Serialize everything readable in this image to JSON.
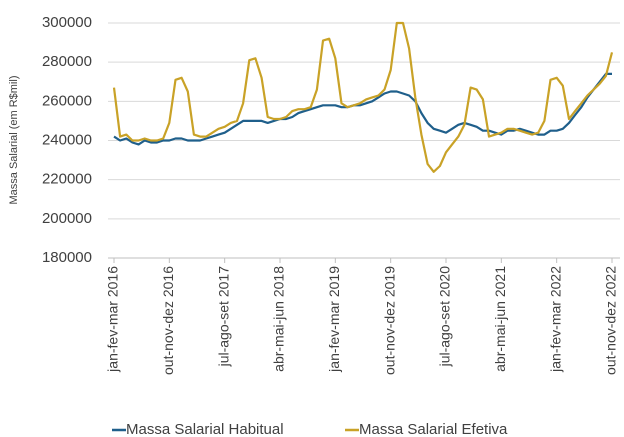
{
  "chart_data": {
    "type": "line",
    "y_label": "Massa Salarial (em R$mil)",
    "categories": [
      "jan-fev-mar 2016",
      null,
      null,
      null,
      null,
      null,
      null,
      null,
      null,
      "out-nov-dez 2016",
      null,
      null,
      null,
      null,
      null,
      null,
      null,
      null,
      "jul-ago-set 2017",
      null,
      null,
      null,
      null,
      null,
      null,
      null,
      null,
      "abr-mai-jun 2018",
      null,
      null,
      null,
      null,
      null,
      null,
      null,
      null,
      "jan-fev-mar 2019",
      null,
      null,
      null,
      null,
      null,
      null,
      null,
      null,
      "out-nov-dez 2019",
      null,
      null,
      null,
      null,
      null,
      null,
      null,
      null,
      "jul-ago-set 2020",
      null,
      null,
      null,
      null,
      null,
      null,
      null,
      null,
      "abr-mai-jun 2021",
      null,
      null,
      null,
      null,
      null,
      null,
      null,
      null,
      "jan-fev-mar 2022",
      null,
      null,
      null,
      null,
      null,
      null,
      null,
      null,
      "out-nov-dez 2022"
    ],
    "series": [
      {
        "name": "Massa Salarial Habitual",
        "color": "#1f5f8b",
        "values": [
          242000,
          240000,
          241000,
          239000,
          238000,
          240000,
          239000,
          239000,
          240000,
          240000,
          241000,
          241000,
          240000,
          240000,
          240000,
          241000,
          242000,
          243000,
          244000,
          246000,
          248000,
          250000,
          250000,
          250000,
          250000,
          249000,
          250000,
          251000,
          251000,
          252000,
          254000,
          255000,
          256000,
          257000,
          258000,
          258000,
          258000,
          257000,
          257000,
          258000,
          258000,
          259000,
          260000,
          262000,
          264000,
          265000,
          265000,
          264000,
          263000,
          260000,
          254000,
          249000,
          246000,
          245000,
          244000,
          246000,
          248000,
          249000,
          248000,
          247000,
          245000,
          245000,
          244000,
          243000,
          245000,
          245000,
          246000,
          245000,
          244000,
          243000,
          243000,
          245000,
          245000,
          246000,
          249000,
          253000,
          257000,
          262000,
          266000,
          270000,
          274000,
          274000
        ]
      },
      {
        "name": "Massa Salarial Efetiva",
        "color": "#c9a227",
        "values": [
          267000,
          242000,
          243000,
          240000,
          240000,
          241000,
          240000,
          240000,
          241000,
          249000,
          271000,
          272000,
          265000,
          243000,
          242000,
          242000,
          244000,
          246000,
          247000,
          249000,
          250000,
          259000,
          281000,
          282000,
          272000,
          252000,
          251000,
          251000,
          252000,
          255000,
          256000,
          256000,
          257000,
          266000,
          291000,
          292000,
          282000,
          259000,
          257000,
          258000,
          259000,
          261000,
          262000,
          263000,
          266000,
          276000,
          300000,
          300000,
          287000,
          262000,
          243000,
          228000,
          224000,
          227000,
          234000,
          238000,
          242000,
          248000,
          267000,
          266000,
          261000,
          242000,
          243000,
          244000,
          246000,
          246000,
          245000,
          244000,
          243000,
          244000,
          250000,
          271000,
          272000,
          268000,
          251000,
          255000,
          259000,
          263000,
          266000,
          269000,
          273000,
          285000
        ]
      }
    ],
    "ylim": [
      180000,
      300000
    ],
    "yticks": [
      180000,
      200000,
      220000,
      240000,
      260000,
      280000,
      300000
    ],
    "grid": true
  }
}
